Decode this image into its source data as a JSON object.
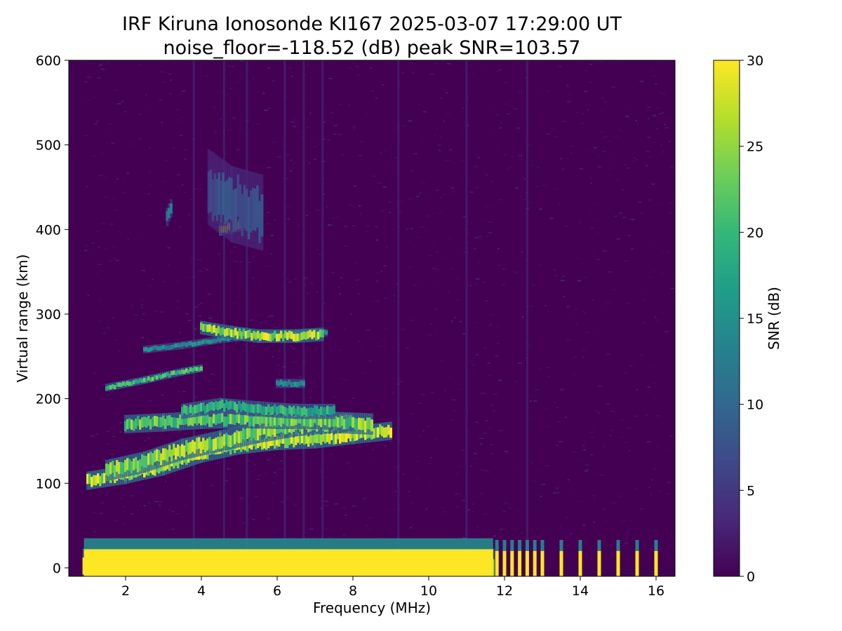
{
  "chart_data": {
    "type": "heatmap",
    "title": "IRF Kiruna Ionosonde KI167 2025-03-07 17:29:00  UT",
    "subtitle": "noise_floor=-118.52 (dB) peak SNR=103.57",
    "xlabel": "Frequency (MHz)",
    "ylabel": "Virtual range (km)",
    "xlim": [
      0.5,
      16.5
    ],
    "ylim": [
      -10,
      600
    ],
    "x_ticks": [
      2,
      4,
      6,
      8,
      10,
      12,
      14,
      16
    ],
    "y_ticks": [
      0,
      100,
      200,
      300,
      400,
      500,
      600
    ],
    "colorbar": {
      "label": "SNR (dB)",
      "range": [
        0,
        30
      ],
      "ticks": [
        0,
        5,
        10,
        15,
        20,
        25,
        30
      ],
      "colormap": "viridis"
    },
    "colormap_stops": [
      "#440154",
      "#482878",
      "#3e4989",
      "#31688e",
      "#26828e",
      "#1f9e89",
      "#35b779",
      "#6ece58",
      "#b5de2b",
      "#fde725"
    ],
    "frequency_start_mhz": 0.9,
    "echo_traces": [
      {
        "name": "ground_clutter",
        "points": [
          [
            0.9,
            5
          ],
          [
            11.7,
            5
          ]
        ],
        "snr": 30,
        "width_km": 20
      },
      {
        "name": "E_layer_low",
        "points": [
          [
            1.0,
            103
          ],
          [
            2.0,
            110
          ],
          [
            3.0,
            120
          ],
          [
            4.0,
            135
          ],
          [
            5.0,
            145
          ],
          [
            6.0,
            150
          ],
          [
            7.0,
            152
          ],
          [
            8.0,
            157
          ],
          [
            9.0,
            162
          ]
        ],
        "snr": 28,
        "width_km": 12
      },
      {
        "name": "E_layer_mid",
        "points": [
          [
            1.5,
            115
          ],
          [
            2.5,
            125
          ],
          [
            3.5,
            140
          ],
          [
            4.5,
            150
          ],
          [
            5.5,
            160
          ],
          [
            6.5,
            168
          ],
          [
            7.5,
            172
          ],
          [
            8.5,
            170
          ]
        ],
        "snr": 26,
        "width_km": 14
      },
      {
        "name": "E_layer_upper",
        "points": [
          [
            2.0,
            170
          ],
          [
            3.0,
            172
          ],
          [
            4.0,
            175
          ],
          [
            5.0,
            176
          ],
          [
            6.0,
            175
          ],
          [
            7.0,
            175
          ],
          [
            8.0,
            172
          ]
        ],
        "snr": 24,
        "width_km": 12
      },
      {
        "name": "E_layer_top",
        "points": [
          [
            3.5,
            185
          ],
          [
            4.5,
            192
          ],
          [
            5.5,
            188
          ],
          [
            6.5,
            185
          ],
          [
            7.5,
            185
          ]
        ],
        "snr": 20,
        "width_km": 10
      },
      {
        "name": "Es_oblique",
        "points": [
          [
            1.5,
            213
          ],
          [
            2.5,
            222
          ],
          [
            3.5,
            232
          ],
          [
            4.0,
            236
          ]
        ],
        "snr": 22,
        "width_km": 5
      },
      {
        "name": "F_trace_lower",
        "points": [
          [
            2.5,
            258
          ],
          [
            3.5,
            263
          ],
          [
            4.5,
            270
          ],
          [
            5.5,
            275
          ],
          [
            6.5,
            277
          ],
          [
            7.3,
            278
          ]
        ],
        "snr": 15,
        "width_km": 5
      },
      {
        "name": "F_trace_main",
        "points": [
          [
            4.0,
            284
          ],
          [
            4.8,
            278
          ],
          [
            5.5,
            274
          ],
          [
            6.5,
            274
          ],
          [
            7.2,
            276
          ]
        ],
        "snr": 27,
        "width_km": 9
      },
      {
        "name": "multi_hop",
        "points": [
          [
            4.5,
            400
          ],
          [
            5.0,
            405
          ],
          [
            5.3,
            408
          ]
        ],
        "snr": 28,
        "width_km": 8
      },
      {
        "name": "multi_hop_diffuse",
        "points": [
          [
            4.2,
            450
          ],
          [
            4.8,
            430
          ],
          [
            5.6,
            420
          ]
        ],
        "snr": 8,
        "width_km": 50
      },
      {
        "name": "high_patch",
        "points": [
          [
            3.1,
            415
          ],
          [
            3.2,
            425
          ]
        ],
        "snr": 12,
        "width_km": 12
      },
      {
        "name": "patch_220",
        "points": [
          [
            6.0,
            218
          ],
          [
            6.7,
            218
          ]
        ],
        "snr": 16,
        "width_km": 6
      }
    ],
    "pulse_columns_mhz": [
      11.8,
      12.0,
      12.2,
      12.4,
      12.6,
      12.8,
      13.0,
      13.5,
      14.0,
      14.5,
      15.0,
      15.5,
      16.0
    ],
    "interference_lines_mhz": [
      3.8,
      4.6,
      5.2,
      6.2,
      6.7,
      7.2,
      9.2,
      11.0,
      12.6
    ]
  }
}
